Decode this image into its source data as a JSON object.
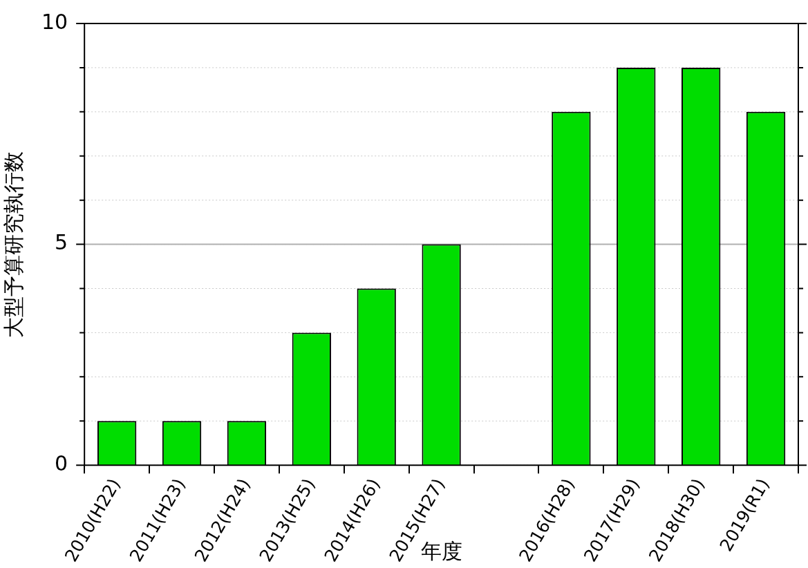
{
  "chart_data": {
    "type": "bar",
    "xlabel": "年度",
    "ylabel": "大型予算研究執行数",
    "categories": [
      "2010(H22)",
      "2011(H23)",
      "2012(H24)",
      "2013(H25)",
      "2014(H26)",
      "2015(H27)",
      null,
      "2016(H28)",
      "2017(H29)",
      "2018(H30)",
      "2019(R1)"
    ],
    "values": [
      1,
      1,
      1,
      3,
      4,
      5,
      null,
      8,
      9,
      9,
      8
    ],
    "color": "#00dd00",
    "ylim": [
      0,
      10
    ],
    "yticks": [
      0,
      {
        "value": 1,
        "label": null
      },
      {
        "value": 2,
        "label": null
      },
      {
        "value": 3,
        "label": null
      },
      {
        "value": 4,
        "label": null
      },
      5,
      {
        "value": 6,
        "label": null
      },
      {
        "value": 7,
        "label": null
      },
      {
        "value": 8,
        "label": null
      },
      {
        "value": 9,
        "label": null
      },
      10
    ],
    "ref_lines": [
      {
        "axis": "y",
        "value": 5,
        "color": "#b0b0b0",
        "line_style": "solid"
      }
    ],
    "grid": "y",
    "legend": false
  }
}
